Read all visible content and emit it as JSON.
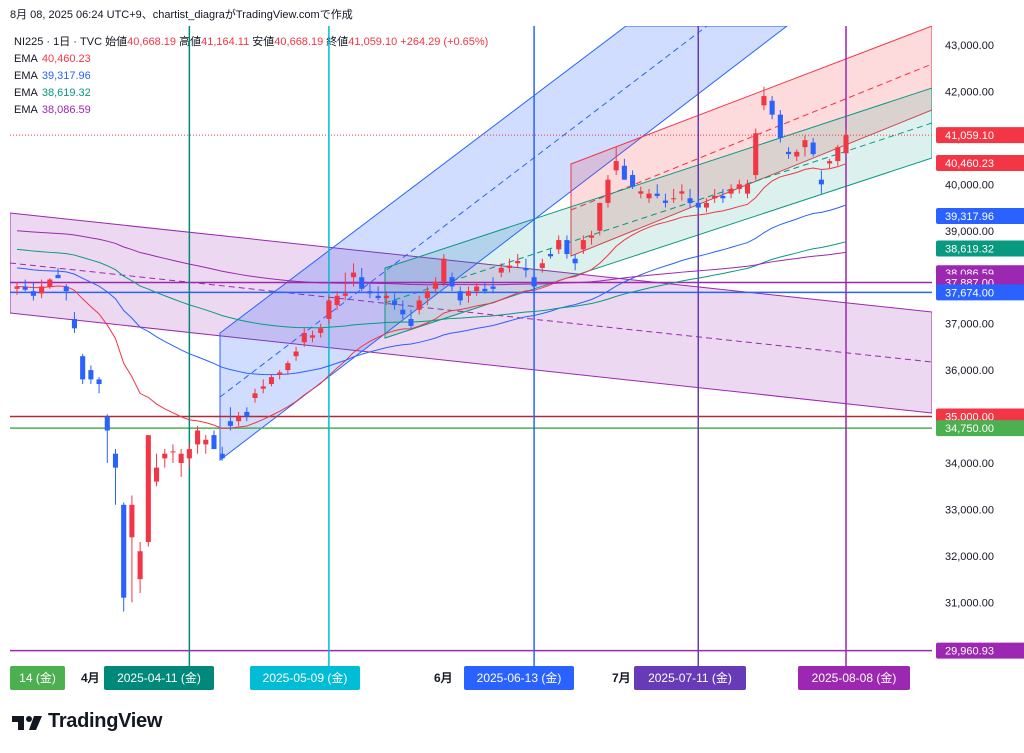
{
  "header": {
    "text": "8月 08, 2025 06:24 UTC+9、chartist_diagraがTradingView.comで作成"
  },
  "legend": {
    "symbol": "NI225 · 1日 · TVC",
    "open_label": "始値",
    "open": "40,668.19",
    "high_label": "高値",
    "high": "41,164.11",
    "low_label": "安値",
    "low": "40,668.19",
    "close_label": "終値",
    "close": "41,059.10",
    "change": "+264.29 (+0.65%)",
    "ema": [
      {
        "label": "EMA",
        "value": "40,460.23",
        "color": "#f23645"
      },
      {
        "label": "EMA",
        "value": "39,317.96",
        "color": "#2962ff"
      },
      {
        "label": "EMA",
        "value": "38,619.32",
        "color": "#089981"
      },
      {
        "label": "EMA",
        "value": "38,086.59",
        "color": "#9c27b0"
      }
    ]
  },
  "logo": {
    "text": "TradingView",
    "icon": "tradingview-logo-icon"
  },
  "chart_data": {
    "type": "candlestick",
    "y_range": [
      29700,
      43400
    ],
    "y_ticks": [
      31000,
      32000,
      33000,
      34000,
      35000,
      36000,
      37000,
      38000,
      39000,
      40000,
      41000,
      42000,
      43000
    ],
    "y_tick_labels": [
      "31,000.00",
      "32,000.00",
      "33,000.00",
      "34,000.00",
      "35,000.00",
      "36,000.00",
      "37,000.00",
      "38,000.00",
      "39,000.00",
      "40,000.00",
      "41,000.00",
      "42,000.00",
      "43,000.00"
    ],
    "price_tags": [
      {
        "value": 41059.1,
        "label": "41,059.10",
        "color": "#f23645"
      },
      {
        "value": 40460.23,
        "label": "40,460.23",
        "color": "#f23645"
      },
      {
        "value": 39317.96,
        "label": "39,317.96",
        "color": "#2962ff"
      },
      {
        "value": 38619.32,
        "label": "38,619.32",
        "color": "#089981"
      },
      {
        "value": 38086.59,
        "label": "38,086.59",
        "color": "#9c27b0"
      },
      {
        "value": 37887.0,
        "label": "37,887.00",
        "color": "#9c27b0"
      },
      {
        "value": 37674.0,
        "label": "37,674.00",
        "color": "#2962ff"
      },
      {
        "value": 35000.0,
        "label": "35,000.00",
        "color": "#f23645"
      },
      {
        "value": 34750.0,
        "label": "34,750.00",
        "color": "#4caf50"
      },
      {
        "value": 29960.93,
        "label": "29,960.93",
        "color": "#9c27b0"
      }
    ],
    "horizontal_lines": [
      {
        "value": 37887,
        "color": "#9c27b0"
      },
      {
        "value": 37674,
        "color": "#2962ff"
      },
      {
        "value": 35000,
        "color": "#b22833"
      },
      {
        "value": 34750,
        "color": "#4caf50"
      },
      {
        "value": 29960.93,
        "color": "#9c27b0"
      },
      {
        "value": 41059.1,
        "color": "#f23645",
        "dotted": true
      }
    ],
    "x_labels": [
      {
        "label": "14 (金)",
        "type": "box",
        "color": "#4caf50"
      },
      {
        "label": "4月",
        "type": "month"
      },
      {
        "label": "2025-04-11 (金)",
        "type": "box",
        "color": "#00897b"
      },
      {
        "label": "2025-05-09 (金)",
        "type": "box",
        "color": "#00bcd4"
      },
      {
        "label": "6月",
        "type": "month"
      },
      {
        "label": "2025-06-13 (金)",
        "type": "box",
        "color": "#2962ff"
      },
      {
        "label": "7月",
        "type": "month"
      },
      {
        "label": "2025-07-11 (金)",
        "type": "box",
        "color": "#673ab7"
      },
      {
        "label": "2025-08-08 (金)",
        "type": "box",
        "color": "#9c27b0"
      }
    ],
    "vertical_markers": [
      {
        "date": "2025-04-11",
        "color": "#00897b"
      },
      {
        "date": "2025-05-09",
        "color": "#00bcd4"
      },
      {
        "date": "2025-06-13",
        "color": "#2962ff"
      },
      {
        "date": "2025-07-11",
        "color": "#673ab7"
      },
      {
        "date": "2025-08-08",
        "color": "#9c27b0"
      }
    ],
    "candles": [
      {
        "date": "2025-03-12",
        "o": 37750,
        "h": 37900,
        "l": 37620,
        "c": 37800
      },
      {
        "date": "2025-03-13",
        "o": 37800,
        "h": 37950,
        "l": 37700,
        "c": 37730
      },
      {
        "date": "2025-03-14",
        "o": 37700,
        "h": 37900,
        "l": 37500,
        "c": 37600
      },
      {
        "date": "2025-03-17",
        "o": 37650,
        "h": 37950,
        "l": 37550,
        "c": 37800
      },
      {
        "date": "2025-03-18",
        "o": 37800,
        "h": 37980,
        "l": 37750,
        "c": 37950
      },
      {
        "date": "2025-03-19",
        "o": 38050,
        "h": 38200,
        "l": 37980,
        "c": 37980
      },
      {
        "date": "2025-03-21",
        "o": 37800,
        "h": 37850,
        "l": 37500,
        "c": 37700
      },
      {
        "date": "2025-03-24",
        "o": 37100,
        "h": 37250,
        "l": 36800,
        "c": 36900
      },
      {
        "date": "2025-03-25",
        "o": 36300,
        "h": 36350,
        "l": 35700,
        "c": 35800
      },
      {
        "date": "2025-03-26",
        "o": 36000,
        "h": 36100,
        "l": 35700,
        "c": 35800
      },
      {
        "date": "2025-03-27",
        "o": 35800,
        "h": 35850,
        "l": 35500,
        "c": 35700
      },
      {
        "date": "2025-03-28",
        "o": 35000,
        "h": 35050,
        "l": 34000,
        "c": 34700
      },
      {
        "date": "2025-03-31",
        "o": 34200,
        "h": 34300,
        "l": 33100,
        "c": 33900
      },
      {
        "date": "2025-04-01",
        "o": 33100,
        "h": 33150,
        "l": 30800,
        "c": 31100
      },
      {
        "date": "2025-04-02",
        "o": 32400,
        "h": 33300,
        "l": 31000,
        "c": 33100
      },
      {
        "date": "2025-04-03",
        "o": 31500,
        "h": 32300,
        "l": 31200,
        "c": 32100
      },
      {
        "date": "2025-04-04",
        "o": 32300,
        "h": 34600,
        "l": 32200,
        "c": 34600
      },
      {
        "date": "2025-04-07",
        "o": 33600,
        "h": 34200,
        "l": 33500,
        "c": 33900
      },
      {
        "date": "2025-04-08",
        "o": 34100,
        "h": 34300,
        "l": 33900,
        "c": 34200
      },
      {
        "date": "2025-04-09",
        "o": 34250,
        "h": 34400,
        "l": 34000,
        "c": 34250
      },
      {
        "date": "2025-04-10",
        "o": 34000,
        "h": 34300,
        "l": 33700,
        "c": 34200
      },
      {
        "date": "2025-04-11",
        "o": 34100,
        "h": 34400,
        "l": 33900,
        "c": 34300
      },
      {
        "date": "2025-04-14",
        "o": 34400,
        "h": 34800,
        "l": 34200,
        "c": 34700
      },
      {
        "date": "2025-04-15",
        "o": 34400,
        "h": 34600,
        "l": 34200,
        "c": 34500
      },
      {
        "date": "2025-04-16",
        "o": 34600,
        "h": 34700,
        "l": 34300,
        "c": 34300
      },
      {
        "date": "2025-04-17",
        "o": 34200,
        "h": 34350,
        "l": 34050,
        "c": 34100
      },
      {
        "date": "2025-04-18",
        "o": 34900,
        "h": 35200,
        "l": 34700,
        "c": 34800
      },
      {
        "date": "2025-04-21",
        "o": 34900,
        "h": 35100,
        "l": 34800,
        "c": 35000
      },
      {
        "date": "2025-04-22",
        "o": 35100,
        "h": 35200,
        "l": 34900,
        "c": 35000
      },
      {
        "date": "2025-04-23",
        "o": 35400,
        "h": 35600,
        "l": 35300,
        "c": 35500
      },
      {
        "date": "2025-04-24",
        "o": 35600,
        "h": 35800,
        "l": 35500,
        "c": 35650
      },
      {
        "date": "2025-04-25",
        "o": 35700,
        "h": 35900,
        "l": 35650,
        "c": 35850
      },
      {
        "date": "2025-04-28",
        "o": 35900,
        "h": 36000,
        "l": 35800,
        "c": 35950
      },
      {
        "date": "2025-04-30",
        "o": 36000,
        "h": 36200,
        "l": 35900,
        "c": 36150
      },
      {
        "date": "2025-05-01",
        "o": 36300,
        "h": 36500,
        "l": 36200,
        "c": 36400
      },
      {
        "date": "2025-05-02",
        "o": 36600,
        "h": 36900,
        "l": 36500,
        "c": 36800
      },
      {
        "date": "2025-05-07",
        "o": 36700,
        "h": 36850,
        "l": 36600,
        "c": 36750
      },
      {
        "date": "2025-05-08",
        "o": 36800,
        "h": 37000,
        "l": 36700,
        "c": 36900
      },
      {
        "date": "2025-05-09",
        "o": 37100,
        "h": 37600,
        "l": 37000,
        "c": 37500
      },
      {
        "date": "2025-05-12",
        "o": 37400,
        "h": 37700,
        "l": 37300,
        "c": 37600
      },
      {
        "date": "2025-05-13",
        "o": 37600,
        "h": 38100,
        "l": 37500,
        "c": 37650
      },
      {
        "date": "2025-05-14",
        "o": 38000,
        "h": 38300,
        "l": 37800,
        "c": 38100
      },
      {
        "date": "2025-05-15",
        "o": 38000,
        "h": 38200,
        "l": 37700,
        "c": 37750
      },
      {
        "date": "2025-05-16",
        "o": 37700,
        "h": 37900,
        "l": 37550,
        "c": 37650
      },
      {
        "date": "2025-05-19",
        "o": 37600,
        "h": 37800,
        "l": 37500,
        "c": 37550
      },
      {
        "date": "2025-05-20",
        "o": 37550,
        "h": 37700,
        "l": 37400,
        "c": 37600
      },
      {
        "date": "2025-05-21",
        "o": 37500,
        "h": 37650,
        "l": 37300,
        "c": 37400
      },
      {
        "date": "2025-05-22",
        "o": 37300,
        "h": 37500,
        "l": 37100,
        "c": 37200
      },
      {
        "date": "2025-05-23",
        "o": 37100,
        "h": 37300,
        "l": 36900,
        "c": 36950
      },
      {
        "date": "2025-05-26",
        "o": 37300,
        "h": 37600,
        "l": 37200,
        "c": 37500
      },
      {
        "date": "2025-05-27",
        "o": 37550,
        "h": 37800,
        "l": 37400,
        "c": 37700
      },
      {
        "date": "2025-05-28",
        "o": 37750,
        "h": 38000,
        "l": 37650,
        "c": 37900
      },
      {
        "date": "2025-05-29",
        "o": 37900,
        "h": 38500,
        "l": 37800,
        "c": 38400
      },
      {
        "date": "2025-05-30",
        "o": 38000,
        "h": 38100,
        "l": 37700,
        "c": 37800
      },
      {
        "date": "2025-06-02",
        "o": 37700,
        "h": 37800,
        "l": 37400,
        "c": 37500
      },
      {
        "date": "2025-06-03",
        "o": 37600,
        "h": 37800,
        "l": 37450,
        "c": 37700
      },
      {
        "date": "2025-06-04",
        "o": 37700,
        "h": 37900,
        "l": 37600,
        "c": 37800
      },
      {
        "date": "2025-06-05",
        "o": 37750,
        "h": 37900,
        "l": 37650,
        "c": 37700
      },
      {
        "date": "2025-06-06",
        "o": 37800,
        "h": 38000,
        "l": 37650,
        "c": 37750
      },
      {
        "date": "2025-06-09",
        "o": 38100,
        "h": 38300,
        "l": 38000,
        "c": 38200
      },
      {
        "date": "2025-06-10",
        "o": 38200,
        "h": 38400,
        "l": 38100,
        "c": 38250
      },
      {
        "date": "2025-06-11",
        "o": 38300,
        "h": 38500,
        "l": 38200,
        "c": 38350
      },
      {
        "date": "2025-06-12",
        "o": 38200,
        "h": 38400,
        "l": 38000,
        "c": 38150
      },
      {
        "date": "2025-06-13",
        "o": 38000,
        "h": 38100,
        "l": 37600,
        "c": 37800
      },
      {
        "date": "2025-06-16",
        "o": 38200,
        "h": 38400,
        "l": 38100,
        "c": 38300
      },
      {
        "date": "2025-06-17",
        "o": 38500,
        "h": 38600,
        "l": 38400,
        "c": 38450
      },
      {
        "date": "2025-06-18",
        "o": 38600,
        "h": 38900,
        "l": 38500,
        "c": 38800
      },
      {
        "date": "2025-06-19",
        "o": 38800,
        "h": 38900,
        "l": 38400,
        "c": 38500
      },
      {
        "date": "2025-06-20",
        "o": 38400,
        "h": 38500,
        "l": 38150,
        "c": 38300
      },
      {
        "date": "2025-06-23",
        "o": 38600,
        "h": 38900,
        "l": 38500,
        "c": 38800
      },
      {
        "date": "2025-06-24",
        "o": 38850,
        "h": 39000,
        "l": 38700,
        "c": 38900
      },
      {
        "date": "2025-06-25",
        "o": 39000,
        "h": 39600,
        "l": 38900,
        "c": 39600
      },
      {
        "date": "2025-06-26",
        "o": 39600,
        "h": 40200,
        "l": 39500,
        "c": 40100
      },
      {
        "date": "2025-06-27",
        "o": 40300,
        "h": 40800,
        "l": 40200,
        "c": 40500
      },
      {
        "date": "2025-06-30",
        "o": 40400,
        "h": 40550,
        "l": 40100,
        "c": 40100
      },
      {
        "date": "2025-07-01",
        "o": 40200,
        "h": 40300,
        "l": 39900,
        "c": 39950
      },
      {
        "date": "2025-07-02",
        "o": 39800,
        "h": 39950,
        "l": 39700,
        "c": 39850
      },
      {
        "date": "2025-07-03",
        "o": 39700,
        "h": 39900,
        "l": 39600,
        "c": 39800
      },
      {
        "date": "2025-07-04",
        "o": 39800,
        "h": 40000,
        "l": 39700,
        "c": 39750
      },
      {
        "date": "2025-07-07",
        "o": 39650,
        "h": 39800,
        "l": 39500,
        "c": 39600
      },
      {
        "date": "2025-07-08",
        "o": 39700,
        "h": 39900,
        "l": 39600,
        "c": 39700
      },
      {
        "date": "2025-07-09",
        "o": 39800,
        "h": 40000,
        "l": 39650,
        "c": 39850
      },
      {
        "date": "2025-07-10",
        "o": 39700,
        "h": 39900,
        "l": 39500,
        "c": 39600
      },
      {
        "date": "2025-07-11",
        "o": 39600,
        "h": 39750,
        "l": 39400,
        "c": 39500
      },
      {
        "date": "2025-07-14",
        "o": 39500,
        "h": 39700,
        "l": 39400,
        "c": 39600
      },
      {
        "date": "2025-07-15",
        "o": 39700,
        "h": 39900,
        "l": 39600,
        "c": 39750
      },
      {
        "date": "2025-07-16",
        "o": 39750,
        "h": 39900,
        "l": 39600,
        "c": 39700
      },
      {
        "date": "2025-07-17",
        "o": 39800,
        "h": 40000,
        "l": 39700,
        "c": 39900
      },
      {
        "date": "2025-07-18",
        "o": 39900,
        "h": 40100,
        "l": 39800,
        "c": 40000
      },
      {
        "date": "2025-07-22",
        "o": 39800,
        "h": 40100,
        "l": 39700,
        "c": 40000
      },
      {
        "date": "2025-07-23",
        "o": 40200,
        "h": 41200,
        "l": 40100,
        "c": 41100
      },
      {
        "date": "2025-07-24",
        "o": 41700,
        "h": 42100,
        "l": 41600,
        "c": 41900
      },
      {
        "date": "2025-07-25",
        "o": 41800,
        "h": 41900,
        "l": 41400,
        "c": 41500
      },
      {
        "date": "2025-07-28",
        "o": 41500,
        "h": 41600,
        "l": 40900,
        "c": 41000
      },
      {
        "date": "2025-07-30",
        "o": 40700,
        "h": 40800,
        "l": 40550,
        "c": 40650
      },
      {
        "date": "2025-07-31",
        "o": 40600,
        "h": 40750,
        "l": 40500,
        "c": 40700
      },
      {
        "date": "2025-08-01",
        "o": 40800,
        "h": 41050,
        "l": 40600,
        "c": 40950
      },
      {
        "date": "2025-08-04",
        "o": 40900,
        "h": 41000,
        "l": 40600,
        "c": 40650
      },
      {
        "date": "2025-08-05",
        "o": 40100,
        "h": 40300,
        "l": 39800,
        "c": 40000
      },
      {
        "date": "2025-08-06",
        "o": 40450,
        "h": 40550,
        "l": 40350,
        "c": 40500
      },
      {
        "date": "2025-08-07",
        "o": 40500,
        "h": 40850,
        "l": 40400,
        "c": 40800
      },
      {
        "date": "2025-08-08",
        "o": 40668.19,
        "h": 41164.11,
        "l": 40668.19,
        "c": 41059.1
      }
    ]
  }
}
